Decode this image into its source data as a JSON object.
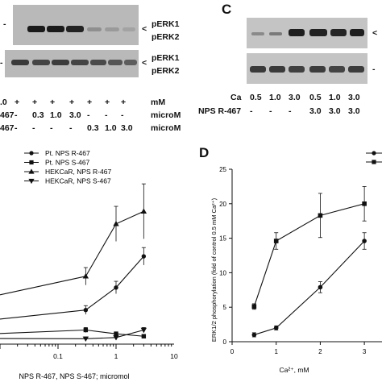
{
  "panel_a": {
    "blot_labels": [
      "pERK1",
      "pERK2",
      "pERK1",
      "pERK2"
    ],
    "arrow": "<",
    "dash": "-",
    "row_unit_1": "mM",
    "row_unit_2": "microM",
    "row_unit_3": "microM",
    "row_prefix_1": ".0",
    "row_prefix_2": "467",
    "row_prefix_3": "467",
    "row1": [
      "+",
      "+",
      "+",
      "+",
      "+",
      "+",
      "+",
      "+"
    ],
    "row2": [
      "-",
      "0.3",
      "1.0",
      "3.0",
      "-",
      "-",
      "-",
      "-"
    ],
    "row3": [
      "-",
      "-",
      "-",
      "-",
      "0.3",
      "1.0",
      "3.0",
      "-"
    ]
  },
  "panel_c": {
    "letter": "C",
    "arrow": "<",
    "dash": "-",
    "ca_label": "Ca",
    "ca_values": [
      "0.5",
      "1.0",
      "3.0",
      "0.5",
      "1.0",
      "3.0"
    ],
    "nps_label": "NPS R-467",
    "nps_values": [
      "-",
      "-",
      "-",
      "3.0",
      "3.0",
      "3.0"
    ]
  },
  "chart_data": [
    {
      "type": "line",
      "xlabel": "NPS R-467, NPS S-467; micromol",
      "x_scale": "log",
      "xticks": [
        "0.1",
        "1",
        "10"
      ],
      "xlim": [
        0.01,
        10
      ],
      "legend_position": "top-left",
      "series": [
        {
          "name": "Pt. NPS R-467",
          "marker": "circle",
          "x": [
            0.3,
            1,
            3
          ],
          "y": [
            2.6,
            4.4,
            6.9
          ],
          "err": [
            0.35,
            0.5,
            0.7
          ]
        },
        {
          "name": "Pt. NPS S-467",
          "marker": "square",
          "x": [
            0.3,
            1,
            3
          ],
          "y": [
            1.0,
            0.7,
            0.5
          ],
          "err": [
            0.2,
            0.15,
            0.15
          ]
        },
        {
          "name": "HEKCaR, NPS R-467",
          "marker": "triangle-up",
          "x": [
            0.3,
            1,
            3
          ],
          "y": [
            5.3,
            9.5,
            10.5
          ],
          "err": [
            0.7,
            1.4,
            2.2
          ]
        },
        {
          "name": "HEKCaR, NPS S-467",
          "marker": "triangle-down",
          "x": [
            0.3,
            1,
            3
          ],
          "y": [
            0.3,
            0.4,
            1.0
          ],
          "err": [
            0.15,
            0.2,
            0.2
          ]
        }
      ]
    },
    {
      "type": "line",
      "letter": "D",
      "ylabel": "ERK1/2 phosphorylation (fold of control 0.5 mM Ca²⁺)",
      "xlabel": "Ca²⁺, mM",
      "xlim": [
        0,
        3.4
      ],
      "ylim": [
        0,
        25
      ],
      "xticks": [
        "0",
        "1",
        "2",
        "3"
      ],
      "yticks": [
        "0",
        "5",
        "10",
        "15",
        "20",
        "25"
      ],
      "legend_position": "top-right",
      "series": [
        {
          "name": "",
          "marker": "circle",
          "x": [
            0.5,
            1,
            2,
            3
          ],
          "y": [
            1.0,
            2.0,
            7.9,
            14.6
          ],
          "err": [
            0.3,
            0.3,
            0.8,
            1.2
          ]
        },
        {
          "name": "",
          "marker": "square",
          "x": [
            0.5,
            1,
            2,
            3
          ],
          "y": [
            5.1,
            14.6,
            18.3,
            20.0
          ],
          "err": [
            0.4,
            1.2,
            3.2,
            2.5
          ]
        }
      ]
    }
  ]
}
